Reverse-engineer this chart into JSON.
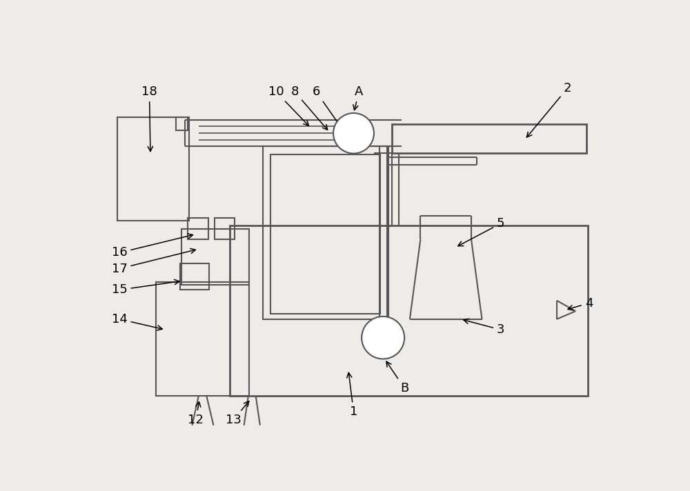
{
  "bg_color": "#eeece9",
  "line_color": "#555555",
  "lw": 1.5,
  "tlw": 2.0,
  "font_size": 13
}
